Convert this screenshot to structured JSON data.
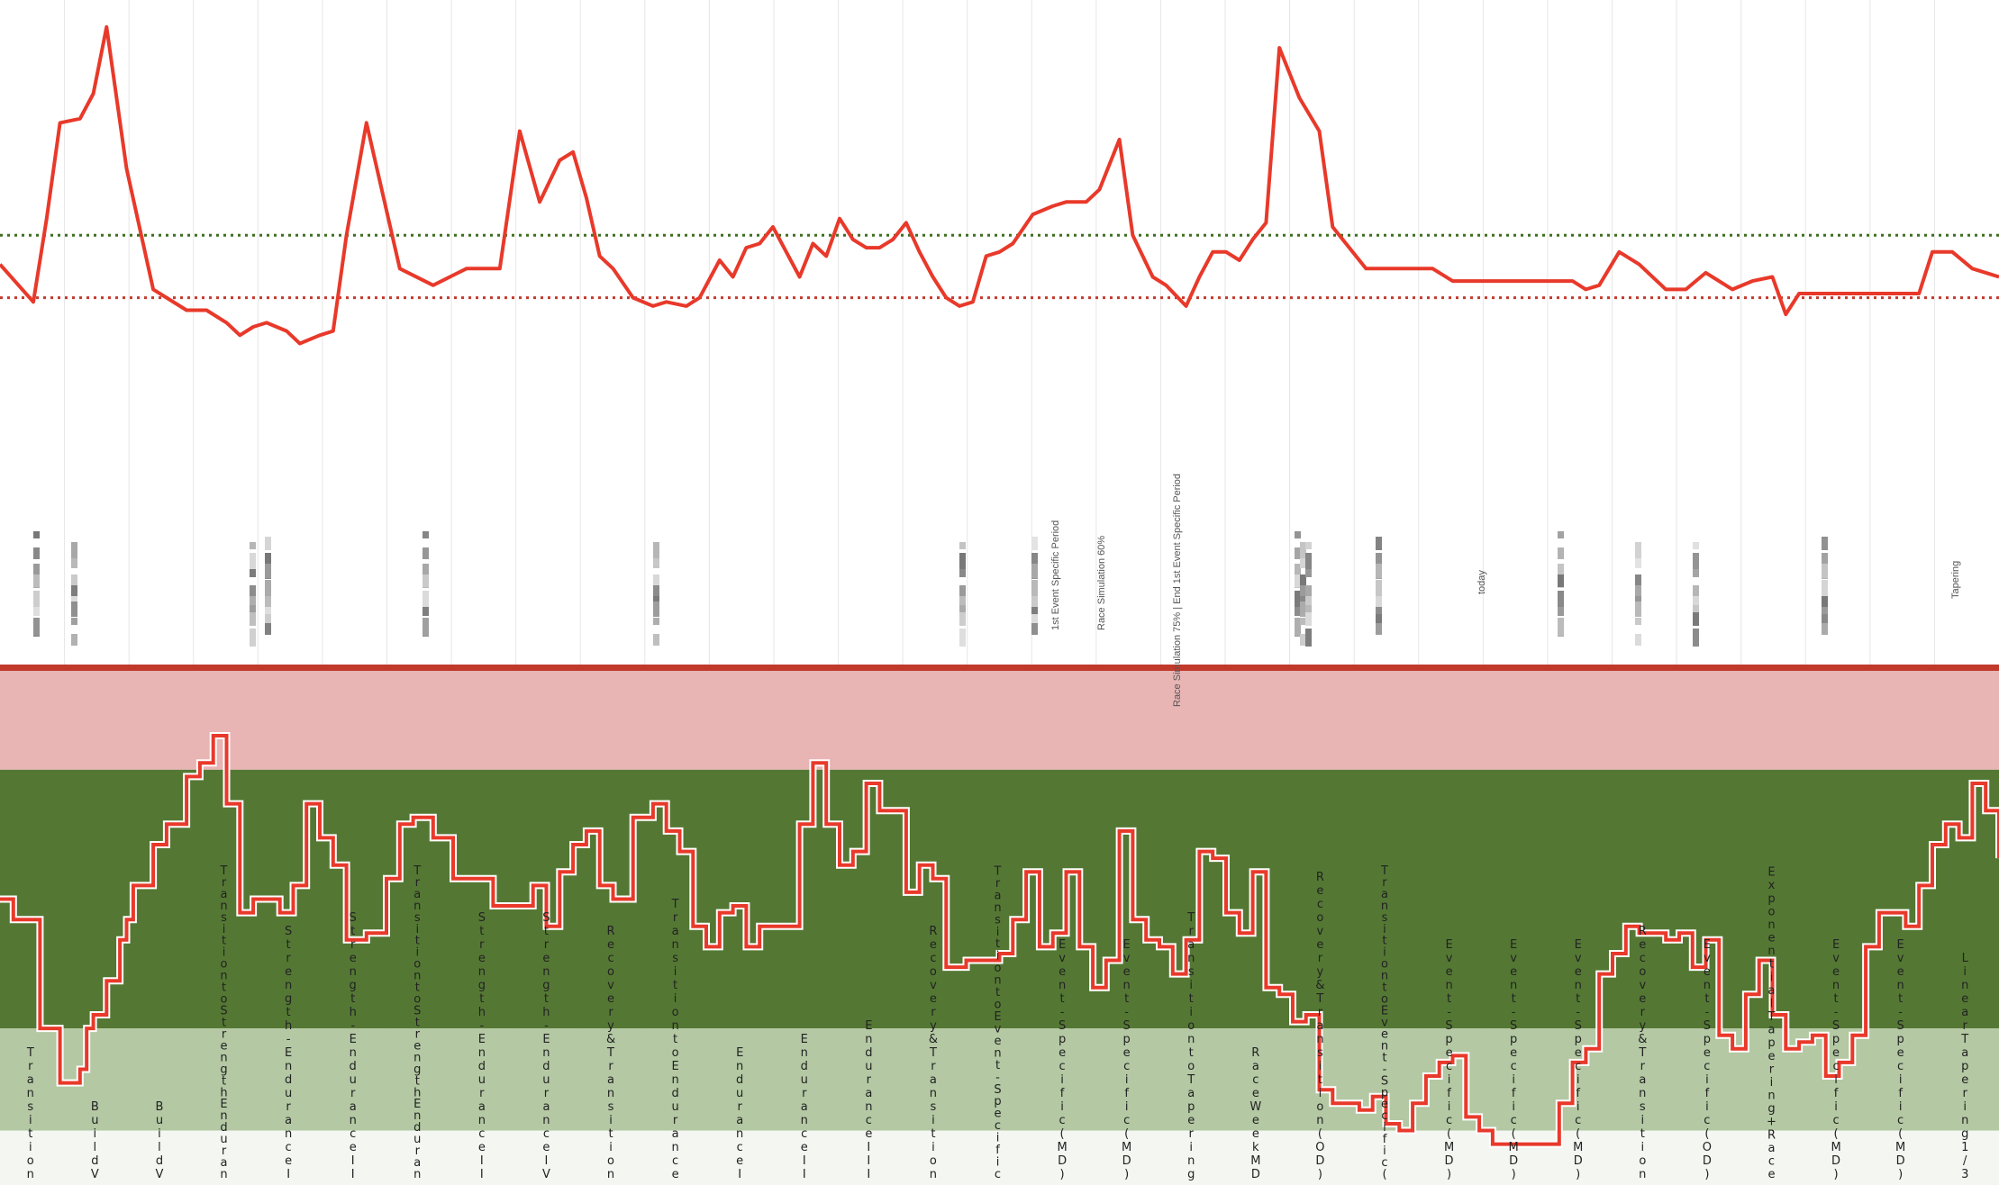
{
  "chart_data": {
    "type": "line",
    "colors": {
      "line": "#e8392a",
      "ref_upper": "#c43a2e",
      "ref_lower": "#3e6e1f",
      "band_top_line": "#c0392b",
      "band_high": "#e8b4b4",
      "band_mid": "#547834",
      "band_low": "#b3c8a3",
      "band_base": "#f4f6f2",
      "grid": "#e6e6e6"
    },
    "top_panel": {
      "reference_lines": [
        {
          "name": "upper",
          "value": 95
        },
        {
          "name": "lower",
          "value": 80
        }
      ],
      "ylim": [
        30,
        110
      ],
      "xlim": [
        0,
        300
      ],
      "x": [
        0,
        5,
        7,
        9,
        12,
        14,
        16,
        19,
        23,
        28,
        31,
        34,
        36,
        38,
        40,
        43,
        45,
        48,
        50,
        52,
        55,
        60,
        65,
        70,
        75,
        78,
        81,
        84,
        86,
        88,
        90,
        92,
        95,
        98,
        100,
        103,
        105,
        108,
        110,
        112,
        114,
        116,
        118,
        120,
        122,
        124,
        126,
        128,
        130,
        132,
        134,
        136,
        138,
        140,
        142,
        144,
        146,
        148,
        150,
        152,
        155,
        158,
        160,
        163,
        165,
        168,
        170,
        173,
        175,
        178,
        180,
        182,
        184,
        186,
        188,
        190,
        192,
        195,
        198,
        200,
        205,
        210,
        213,
        215,
        218,
        220,
        222,
        224,
        226,
        228,
        230,
        232,
        234,
        236,
        238,
        240,
        243,
        246,
        250,
        253,
        256,
        260,
        263,
        266,
        268,
        270,
        272,
        275,
        278,
        280,
        283,
        286,
        288,
        290,
        293,
        296,
        300
      ],
      "y": [
        87,
        96,
        76,
        53,
        52,
        46,
        30,
        64,
        93,
        98,
        98,
        101,
        104,
        102,
        101,
        103,
        106,
        104,
        103,
        80,
        53,
        88,
        92,
        88,
        88,
        55,
        72,
        62,
        60,
        71,
        85,
        88,
        95,
        97,
        96,
        97,
        95,
        86,
        90,
        83,
        82,
        78,
        84,
        90,
        82,
        85,
        76,
        81,
        83,
        83,
        81,
        77,
        84,
        90,
        95,
        97,
        96,
        85,
        84,
        82,
        75,
        73,
        72,
        72,
        69,
        57,
        80,
        90,
        92,
        97,
        90,
        84,
        84,
        86,
        81,
        77,
        35,
        47,
        55,
        78,
        88,
        88,
        88,
        88,
        91,
        91,
        91,
        91,
        91,
        91,
        91,
        91,
        91,
        91,
        93,
        92,
        84,
        87,
        93,
        93,
        89,
        93,
        91,
        90,
        99,
        94,
        94,
        94,
        94,
        94,
        94,
        94,
        94,
        84,
        84,
        88,
        90
      ]
    },
    "bottom_panel": {
      "ylim": [
        0,
        100
      ],
      "xlim": [
        0,
        300
      ],
      "bands": [
        {
          "name": "high",
          "from": 61,
          "to": 76
        },
        {
          "name": "mid",
          "from": 23,
          "to": 61
        },
        {
          "name": "low",
          "from": 8,
          "to": 23
        },
        {
          "name": "base",
          "from": 0,
          "to": 8
        }
      ],
      "x": [
        0,
        2,
        6,
        9,
        12,
        13,
        14,
        16,
        18,
        19,
        20,
        23,
        25,
        28,
        30,
        32,
        34,
        36,
        38,
        40,
        42,
        44,
        46,
        48,
        50,
        52,
        55,
        58,
        60,
        62,
        65,
        68,
        70,
        74,
        78,
        80,
        82,
        84,
        86,
        88,
        90,
        92,
        95,
        98,
        100,
        102,
        104,
        106,
        108,
        110,
        112,
        114,
        116,
        118,
        120,
        122,
        124,
        126,
        128,
        130,
        132,
        134,
        136,
        138,
        140,
        142,
        145,
        147,
        150,
        152,
        154,
        156,
        158,
        160,
        162,
        164,
        166,
        168,
        170,
        172,
        174,
        176,
        178,
        180,
        182,
        184,
        186,
        188,
        190,
        192,
        194,
        196,
        198,
        200,
        202,
        204,
        206,
        208,
        210,
        212,
        214,
        216,
        218,
        220,
        222,
        224,
        226,
        228,
        230,
        232,
        234,
        236,
        238,
        240,
        242,
        244,
        246,
        248,
        250,
        252,
        254,
        256,
        258,
        260,
        262,
        264,
        266,
        268,
        270,
        272,
        274,
        276,
        278,
        280,
        282,
        284,
        286,
        288,
        290,
        292,
        294,
        296,
        298,
        300
      ],
      "y": [
        42,
        39,
        23,
        15,
        17,
        23,
        25,
        30,
        36,
        39,
        44,
        50,
        53,
        60,
        62,
        66,
        56,
        40,
        42,
        42,
        40,
        44,
        56,
        51,
        47,
        36,
        37,
        45,
        53,
        54,
        51,
        45,
        45,
        41,
        41,
        44,
        38,
        46,
        50,
        52,
        44,
        42,
        54,
        56,
        52,
        49,
        38,
        35,
        40,
        41,
        35,
        38,
        38,
        38,
        53,
        62,
        53,
        47,
        49,
        59,
        55,
        55,
        43,
        47,
        45,
        32,
        33,
        33,
        34,
        39,
        46,
        35,
        37,
        46,
        35,
        29,
        33,
        52,
        39,
        36,
        35,
        31,
        36,
        49,
        48,
        40,
        37,
        46,
        29,
        28,
        24,
        25,
        14,
        12,
        12,
        11,
        13,
        9,
        8,
        12,
        16,
        18,
        19,
        10,
        8,
        6,
        6,
        6,
        6,
        6,
        12,
        18,
        20,
        31,
        34,
        38,
        37,
        37,
        36,
        37,
        32,
        36,
        22,
        20,
        28,
        33,
        25,
        20,
        21,
        22,
        16,
        18,
        22,
        35,
        40,
        40,
        38,
        44,
        50,
        53,
        51,
        59,
        55,
        48
      ]
    },
    "phase_labels": [
      "Transition",
      "BuildV",
      "BuildV",
      "TransitiontoStrengthEnduran",
      "Strength-EnduranceI",
      "Strength-EnduranceII",
      "TransitiontoStrengthEnduran",
      "Strength-EnduranceII",
      "Strength-EnduranceIV",
      "Recovery&Transition",
      "TransitiontoEndurance",
      "EnduranceI",
      "EnduranceII",
      "EnduranceIII",
      "Recovery&Transition",
      "TransitiontoEvent-Specific",
      "Event-Specific(MD)",
      "Event-Specific(MD)",
      "TransitiontoTapering",
      "RaceWeekMD",
      "Recovery&Transition(OD)",
      "TransitiontoEvent-Specific(",
      "Event-Specific(MD)",
      "Event-Specific(MD)",
      "Event-Specific(MD)",
      "Recovery&Transition",
      "Event-Specific(OD)",
      "ExponentialTapering+Race",
      "Event-Specific(MD)",
      "Event-Specific(MD)",
      "LinearTapering1/3"
    ],
    "event_labels": [
      "1st Event Specific Period",
      "Race Simulation 60%",
      "Race Simulation 75% | End 1st Event Specific Period",
      "today",
      "Tapering"
    ]
  }
}
